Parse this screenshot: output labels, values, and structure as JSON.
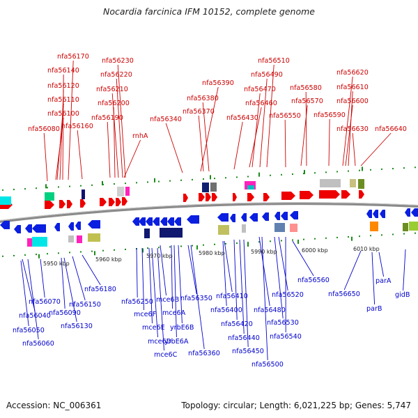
{
  "title": "Nocardia farcinica IFM 10152, complete genome",
  "accession": "Accession: NC_006361",
  "topology": "Topology: circular; Length: 6,021,225 bp; Genes: 5,747",
  "colors": {
    "forward": "#ee0000",
    "reverse": "#0a1fe0",
    "forward_label": "#cc0000",
    "reverse_label": "#0000cc",
    "backbone": "#8a8a8a",
    "tick": "#1a8a1a"
  },
  "scale_labels": [
    "5950 kbp",
    "5960 kbp",
    "5970 kbp",
    "5980 kbp",
    "5990 kbp",
    "6000 kbp",
    "6010 kbp"
  ],
  "forward_genes": [
    "nfa56170",
    "nfa56230",
    "nfa56140",
    "nfa56220",
    "nfa56120",
    "nfa56210",
    "nfa56110",
    "nfa56200",
    "nfa56100",
    "nfa56190",
    "nfa56080",
    "nfa56160",
    "rnhA",
    "nfa56340",
    "nfa56390",
    "nfa56380",
    "nfa56370",
    "nfa56510",
    "nfa56490",
    "nfa56470",
    "nfa56460",
    "nfa56430",
    "nfa56620",
    "nfa56610",
    "nfa56580",
    "nfa56570",
    "nfa56600",
    "nfa56550",
    "nfa56590",
    "nfa56630",
    "nfa56640"
  ],
  "reverse_genes": [
    "nfa56180",
    "nfa56070",
    "nfa56150",
    "nfa56040",
    "nfa56090",
    "nfa56050",
    "nfa56130",
    "nfa56060",
    "nfa56250",
    "mce6F",
    "mce6B",
    "mce6E",
    "mce6A",
    "mce6D",
    "yrbE6B",
    "mce6C",
    "yrbE6A",
    "nfa56350",
    "nfa56360",
    "nfa56410",
    "nfa56400",
    "nfa56420",
    "nfa56440",
    "nfa56450",
    "nfa56480",
    "nfa56520",
    "nfa56530",
    "nfa56540",
    "nfa56500",
    "nfa56560",
    "nfa56650",
    "parA",
    "parB",
    "gidB"
  ]
}
